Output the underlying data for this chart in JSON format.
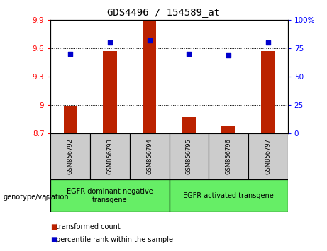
{
  "title": "GDS4496 / 154589_at",
  "samples": [
    "GSM856792",
    "GSM856793",
    "GSM856794",
    "GSM856795",
    "GSM856796",
    "GSM856797"
  ],
  "transformed_counts": [
    8.98,
    9.57,
    9.9,
    8.87,
    8.77,
    9.57
  ],
  "percentile_ranks": [
    70,
    80,
    82,
    70,
    69,
    80
  ],
  "ylim_left": [
    8.7,
    9.9
  ],
  "ylim_right": [
    0,
    100
  ],
  "yticks_left": [
    8.7,
    9.0,
    9.3,
    9.6,
    9.9
  ],
  "yticks_right": [
    0,
    25,
    50,
    75,
    100
  ],
  "ytick_labels_left": [
    "8.7",
    "9",
    "9.3",
    "9.6",
    "9.9"
  ],
  "ytick_labels_right": [
    "0",
    "25",
    "50",
    "75",
    "100%"
  ],
  "bar_color": "#bb2200",
  "dot_color": "#0000cc",
  "bar_bottom": 8.7,
  "group1_label": "EGFR dominant negative\ntransgene",
  "group2_label": "EGFR activated transgene",
  "group_color": "#66ee66",
  "sample_box_color": "#cccccc",
  "genotype_label": "genotype/variation",
  "legend_items": [
    "transformed count",
    "percentile rank within the sample"
  ],
  "title_fontsize": 10,
  "tick_fontsize": 7.5,
  "sample_fontsize": 6,
  "group_fontsize": 7,
  "legend_fontsize": 7,
  "genotype_fontsize": 7
}
